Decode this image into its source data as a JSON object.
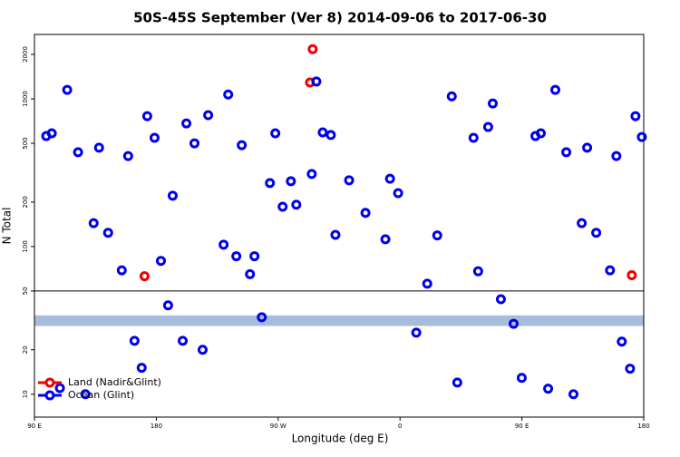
{
  "chart_data": {
    "type": "scatter",
    "title": "50S-45S September (Ver 8)   2014-09-06 to 2017-06-30",
    "x_label": "Longitude (deg E)",
    "y_label": "N Total",
    "xlim": [
      90,
      540
    ],
    "xticks": [
      {
        "value": 90,
        "label": "90 E"
      },
      180,
      {
        "value": 270,
        "label": "90 W"
      },
      {
        "value": 360,
        "label": "0"
      },
      {
        "value": 450,
        "label": "90 E"
      },
      {
        "value": 540,
        "label": "180"
      }
    ],
    "ylim": [
      7,
      2730
    ],
    "log_y": true,
    "yticks": [
      10,
      20,
      50,
      100,
      200,
      500,
      1000,
      2000
    ],
    "hline": 50,
    "band": {
      "ylim": [
        29,
        34.2
      ],
      "color": "#a7bbdd"
    },
    "legend": "bottom-left",
    "series": [
      {
        "name": "Land (Nadir&Glint)",
        "color": "#ee0000",
        "x": [
          295.5,
          293.5,
          171.3,
          531.2
        ],
        "values": [
          2170,
          1290,
          63,
          64
        ]
      },
      {
        "name": "Ocean (Glint)",
        "color": "#0000ee",
        "x": [
          98.7,
          102.8,
          114.2,
          122.2,
          133.7,
          137.7,
          144.4,
          154.5,
          159.2,
          173.3,
          178.7,
          183.4,
          192.1,
          202.2,
          208.2,
          218.3,
          229.7,
          233.1,
          239.1,
          243.1,
          249.2,
          252.5,
          263.9,
          267.9,
          273.3,
          279.4,
          283.4,
          294.8,
          298.2,
          302.9,
          308.9,
          312.3,
          322.4,
          334.5,
          349.2,
          352.6,
          358.6,
          380.1,
          387.5,
          398.2,
          414.3,
          417.7,
          425.1,
          428.5,
          434.5,
          443.9,
          449.9,
          460.0,
          464.0,
          469.4,
          474.7,
          482.8,
          488.1,
          494.2,
          498.2,
          504.9,
          515.1,
          519.8,
          523.8,
          529.9,
          533.9,
          538.6,
          108.8,
          127.6,
          163.9,
          169.2,
          188.7,
          199.5,
          214.2,
          257.9,
          372.0,
          402.3
        ],
        "values": [
          560,
          585,
          1150,
          435,
          144,
          467,
          124,
          69,
          410,
          764,
          545,
          80,
          221,
          682,
          500,
          776,
          103,
          1070,
          86,
          486,
          65,
          86,
          269,
          585,
          186,
          277,
          192,
          310,
          1310,
          593,
          569,
          120,
          281,
          169,
          112,
          288,
          230,
          56,
          119,
          1040,
          545,
          68,
          645,
          931,
          44,
          30,
          12.9,
          560,
          585,
          10.9,
          1150,
          435,
          10,
          144,
          467,
          124,
          69,
          410,
          22.7,
          14.9,
          764,
          552,
          11.0,
          10,
          23.0,
          15.1,
          40,
          23,
          20,
          33.2,
          26.1,
          12.0
        ]
      }
    ]
  }
}
